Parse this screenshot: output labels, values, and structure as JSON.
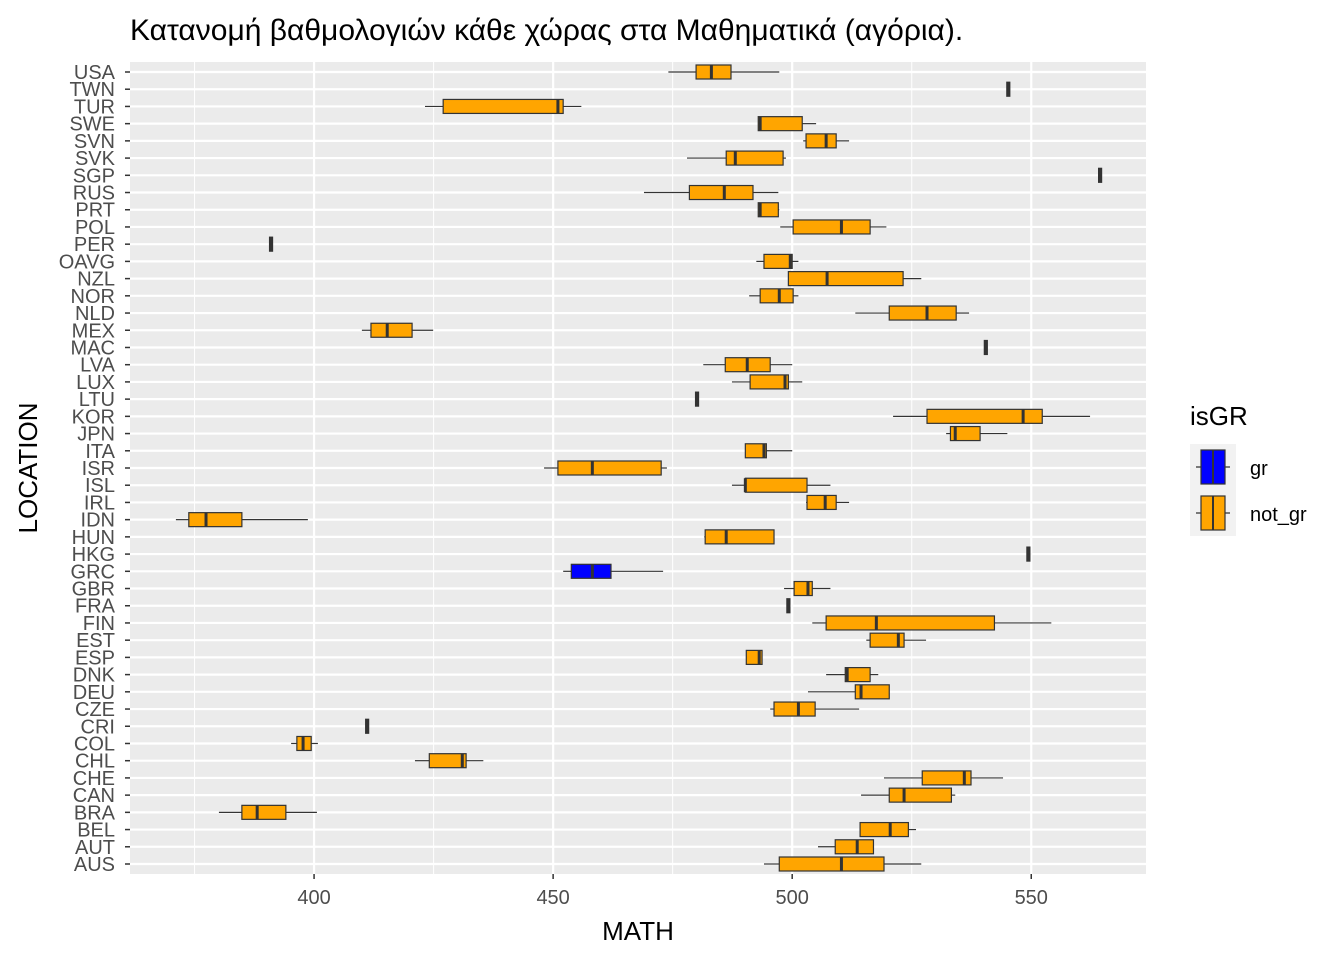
{
  "chart_data": {
    "type": "boxplot",
    "title": "Κατανομή βαθμολογιών κάθε χώρας στα Μαθηματικά (αγόρια).",
    "xlabel": "MATH",
    "ylabel": "LOCATION",
    "xlim": [
      361.5,
      574
    ],
    "xticks": [
      "400",
      "450",
      "500",
      "550"
    ],
    "grid": true,
    "legend": {
      "title": "isGR",
      "position": "right",
      "entries": [
        {
          "label": "gr",
          "color": "#0000ff"
        },
        {
          "label": "not_gr",
          "color": "#ffa500"
        }
      ]
    },
    "categories": [
      "USA",
      "TWN",
      "TUR",
      "SWE",
      "SVN",
      "SVK",
      "SGP",
      "RUS",
      "PRT",
      "POL",
      "PER",
      "OAVG",
      "NZL",
      "NOR",
      "NLD",
      "MEX",
      "MAC",
      "LVA",
      "LUX",
      "LTU",
      "KOR",
      "JPN",
      "ITA",
      "ISR",
      "ISL",
      "IRL",
      "IDN",
      "HUN",
      "HKG",
      "GRC",
      "GBR",
      "FRA",
      "FIN",
      "EST",
      "ESP",
      "DNK",
      "DEU",
      "CZE",
      "CRI",
      "COL",
      "CHL",
      "CHE",
      "CAN",
      "BRA",
      "BEL",
      "AUT",
      "AUS"
    ],
    "boxes": {
      "USA": [
        474.1,
        479.9,
        483.1,
        487.2,
        497.3
      ],
      "TWN": [
        545.2,
        545.2,
        545.2,
        545.2,
        545.2
      ],
      "TUR": [
        423.2,
        427.0,
        451.0,
        452.1,
        455.9
      ],
      "SWE": [
        492.9,
        492.9,
        493.3,
        502.1,
        505.0
      ],
      "SVN": [
        502.3,
        502.9,
        507.1,
        509.2,
        511.9
      ],
      "SVK": [
        478.0,
        486.2,
        488.1,
        498.1,
        498.7
      ],
      "SGP": [
        564.4,
        564.4,
        564.4,
        564.4,
        564.4
      ],
      "RUS": [
        469.0,
        478.5,
        485.8,
        491.8,
        497.1
      ],
      "PRT": [
        492.9,
        492.9,
        493.3,
        497.1,
        497.3
      ],
      "POL": [
        497.5,
        500.2,
        510.3,
        516.3,
        519.7
      ],
      "PER": [
        391.0,
        391.0,
        391.0,
        391.0,
        391.0
      ],
      "OAVG": [
        492.5,
        494.1,
        499.6,
        500.0,
        501.3
      ],
      "NZL": [
        499.2,
        499.2,
        507.3,
        523.2,
        527.0
      ],
      "NOR": [
        491.0,
        493.3,
        497.3,
        500.2,
        501.3
      ],
      "NLD": [
        513.2,
        520.3,
        528.2,
        534.3,
        537.0
      ],
      "MEX": [
        410.0,
        411.9,
        415.3,
        420.5,
        424.9
      ],
      "MAC": [
        540.5,
        540.5,
        540.5,
        540.5,
        540.5
      ],
      "LVA": [
        481.4,
        486.0,
        490.6,
        495.4,
        500.0
      ],
      "LUX": [
        487.4,
        491.2,
        498.5,
        499.2,
        502.1
      ],
      "LTU": [
        480.1,
        480.1,
        480.1,
        480.1,
        480.1
      ],
      "KOR": [
        521.1,
        528.2,
        548.3,
        552.3,
        562.3
      ],
      "JPN": [
        532.2,
        533.1,
        534.1,
        539.3,
        545.0
      ],
      "ITA": [
        490.2,
        490.2,
        494.1,
        494.6,
        500.0
      ],
      "ISR": [
        448.1,
        451.0,
        458.2,
        472.6,
        473.8
      ],
      "ISL": [
        487.4,
        490.2,
        490.2,
        503.1,
        508.0
      ],
      "IRL": [
        502.9,
        503.1,
        506.9,
        509.2,
        511.9
      ],
      "IDN": [
        371.1,
        373.8,
        377.4,
        384.9,
        398.7
      ],
      "HUN": [
        481.6,
        481.8,
        486.2,
        496.2,
        496.2
      ],
      "HKG": [
        549.4,
        549.4,
        549.4,
        549.4,
        549.4
      ],
      "GRC": [
        452.1,
        453.8,
        458.2,
        462.1,
        473.0
      ],
      "GBR": [
        498.3,
        500.4,
        503.3,
        504.2,
        508.0
      ],
      "FRA": [
        499.2,
        499.2,
        499.2,
        499.2,
        499.2
      ],
      "FIN": [
        504.2,
        507.1,
        517.6,
        542.3,
        554.2
      ],
      "EST": [
        515.5,
        516.3,
        522.2,
        523.4,
        528.0
      ],
      "ESP": [
        490.4,
        490.4,
        493.1,
        493.7,
        493.7
      ],
      "DNK": [
        507.1,
        511.1,
        511.5,
        516.3,
        518.0
      ],
      "DEU": [
        503.3,
        513.2,
        514.4,
        520.3,
        520.3
      ],
      "CZE": [
        495.4,
        496.2,
        501.3,
        504.8,
        514.0
      ],
      "CRI": [
        411.1,
        411.1,
        411.1,
        411.1,
        411.1
      ],
      "COL": [
        395.2,
        396.4,
        397.7,
        399.4,
        400.8
      ],
      "CHL": [
        421.1,
        424.1,
        431.0,
        431.8,
        435.4
      ],
      "CHE": [
        519.2,
        527.2,
        536.0,
        537.4,
        544.1
      ],
      "CAN": [
        514.4,
        520.3,
        523.4,
        533.3,
        534.1
      ],
      "BRA": [
        380.1,
        384.9,
        388.1,
        394.1,
        400.6
      ],
      "BEL": [
        514.2,
        514.2,
        520.5,
        524.3,
        525.9
      ],
      "AUT": [
        505.4,
        509.0,
        513.6,
        517.0,
        517.0
      ],
      "AUS": [
        494.1,
        497.3,
        510.3,
        519.2,
        527.0
      ]
    },
    "group": {
      "GRC": "gr",
      "default": "not_gr"
    }
  }
}
